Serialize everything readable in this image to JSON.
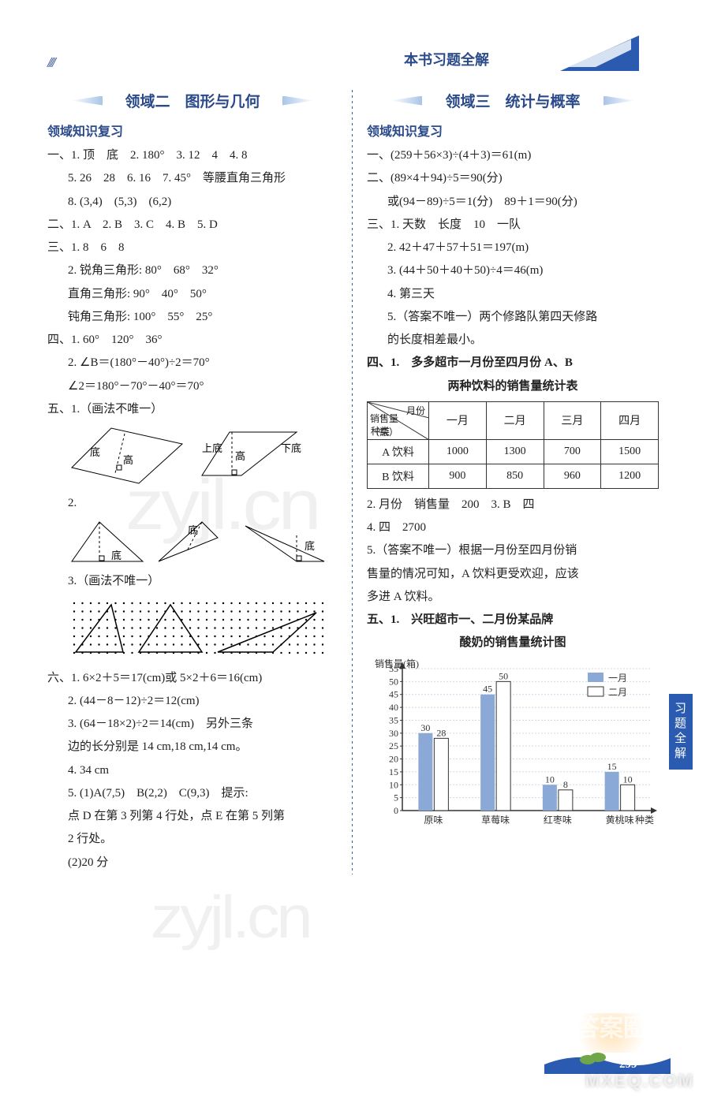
{
  "header": {
    "label": "本书习题全解"
  },
  "side_tab": "习题全解",
  "pagenum": "299",
  "watermarks": {
    "a": "zyjl.cn",
    "b": "zyjl.cn",
    "badge": "答案圈",
    "footer": "MXEQ.COM"
  },
  "left": {
    "title": "领域二　图形与几何",
    "subhead": "领域知识复习",
    "sec1": {
      "l1": "一、1. 顶　底　2. 180°　3. 12　4　4. 8",
      "l2": "5. 26　28　6. 16　7. 45°　等腰直角三角形",
      "l3": "8. (3,4)　(5,3)　(6,2)"
    },
    "sec2": "二、1. A　2. B　3. C　4. B　5. D",
    "sec3": {
      "l1": "三、1. 8　6　8",
      "l2": "2. 锐角三角形: 80°　68°　32°",
      "l3": "直角三角形: 90°　40°　50°",
      "l4": "钝角三角形: 100°　55°　25°"
    },
    "sec4": {
      "l1": "四、1. 60°　120°　36°",
      "l2": "2. ∠B＝(180°－40°)÷2＝70°",
      "l3": "∠2＝180°－70°－40°＝70°"
    },
    "sec5_lead": "五、1.（画法不唯一）",
    "sec5_fig_labels": {
      "di": "底",
      "gao": "高",
      "xiadi": "下底",
      "shangdi": "上底"
    },
    "sec5_item2": "2.",
    "sec5_item3": "3.（画法不唯一）",
    "sec6": {
      "l1": "六、1. 6×2＋5＝17(cm)或 5×2＋6＝16(cm)",
      "l2": "2. (44－8－12)÷2＝12(cm)",
      "l3": "3. (64－18×2)÷2＝14(cm)　另外三条",
      "l3b": "边的长分别是 14 cm,18 cm,14 cm。",
      "l4": "4. 34 cm",
      "l5": "5. (1)A(7,5)　B(2,2)　C(9,3)　提示:",
      "l5b": "点 D 在第 3 列第 4 行处，点 E 在第 5 列第",
      "l5c": "2 行处。",
      "l6": "(2)20 分"
    }
  },
  "right": {
    "title": "领域三　统计与概率",
    "subhead": "领域知识复习",
    "sec1": "一、(259＋56×3)÷(4＋3)＝61(m)",
    "sec2a": "二、(89×4＋94)÷5＝90(分)",
    "sec2b": "或(94－89)÷5＝1(分)　89＋1＝90(分)",
    "sec3": {
      "l1": "三、1. 天数　长度　10　一队",
      "l2": "2. 42＋47＋57＋51＝197(m)",
      "l3": "3. (44＋50＋40＋50)÷4＝46(m)",
      "l4": "4. 第三天",
      "l5": "5.（答案不唯一）两个修路队第四天修路",
      "l5b": "的长度相差最小。"
    },
    "sec4_lead": "四、1.　多多超市一月份至四月份 A、B",
    "sec4_lead2": "两种饮料的销售量统计表",
    "table": {
      "diag": {
        "top": "月份",
        "bottom": "种类",
        "mid": "销售量\n（瓶）"
      },
      "cols": [
        "一月",
        "二月",
        "三月",
        "四月"
      ],
      "rows": [
        {
          "label": "A 饮料",
          "vals": [
            1000,
            1300,
            700,
            1500
          ]
        },
        {
          "label": "B 饮料",
          "vals": [
            900,
            850,
            960,
            1200
          ]
        }
      ]
    },
    "sec4_l2": "2. 月份　销售量　200　3. B　四",
    "sec4_l4": "4. 四　2700",
    "sec4_l5a": "5.（答案不唯一）根据一月份至四月份销",
    "sec4_l5b": "售量的情况可知，A 饮料更受欢迎，应该",
    "sec4_l5c": "多进 A 饮料。",
    "sec5_lead": "五、1.　兴旺超市一、二月份某品牌",
    "sec5_lead2": "酸奶的销售量统计图",
    "chart": {
      "type": "grouped-bar",
      "y_label": "销售量(箱)",
      "x_label": "种类",
      "categories": [
        "原味",
        "草莓味",
        "红枣味",
        "黄桃味"
      ],
      "series": [
        {
          "name": "一月",
          "color": "#8aa9d6",
          "values": [
            30,
            45,
            10,
            15
          ]
        },
        {
          "name": "二月",
          "color": "#ffffff",
          "border": "#333",
          "values": [
            28,
            50,
            8,
            10
          ]
        }
      ],
      "ylim": [
        0,
        55
      ],
      "ytick_step": 5,
      "bar_labels": [
        [
          30,
          28
        ],
        [
          45,
          50
        ],
        [
          10,
          8
        ],
        [
          15,
          10
        ]
      ],
      "grid_color": "#cfd9ea",
      "axis_color": "#333",
      "font_size": 12
    }
  }
}
